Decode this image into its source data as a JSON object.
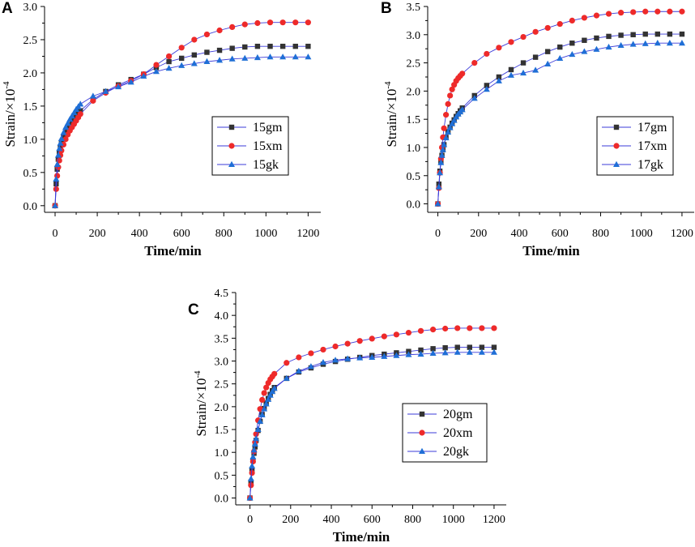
{
  "chart_data": [
    {
      "panel": "A",
      "type": "line",
      "xlabel": "Time/min",
      "ylabel_main": "Strain/×10",
      "ylabel_exp": "-4",
      "xlim": [
        -50,
        1260
      ],
      "ylim": [
        -0.1,
        3.0
      ],
      "xticks": [
        0,
        200,
        400,
        600,
        800,
        1000,
        1200
      ],
      "yticks": [
        0.0,
        0.5,
        1.0,
        1.5,
        2.0,
        2.5,
        3.0
      ],
      "legend_position": "center-right",
      "series": [
        {
          "name": "15gm",
          "color": "#333333",
          "marker": "square",
          "x": [
            0,
            5,
            10,
            15,
            20,
            25,
            30,
            40,
            50,
            60,
            70,
            80,
            90,
            100,
            110,
            120,
            180,
            240,
            300,
            360,
            420,
            480,
            540,
            600,
            660,
            720,
            780,
            840,
            900,
            960,
            1020,
            1080,
            1140,
            1200
          ],
          "y": [
            0,
            0.33,
            0.55,
            0.7,
            0.8,
            0.88,
            0.95,
            1.03,
            1.1,
            1.16,
            1.21,
            1.26,
            1.31,
            1.35,
            1.39,
            1.43,
            1.6,
            1.72,
            1.82,
            1.9,
            1.98,
            2.08,
            2.17,
            2.22,
            2.27,
            2.31,
            2.34,
            2.37,
            2.39,
            2.4,
            2.4,
            2.4,
            2.4,
            2.4
          ]
        },
        {
          "name": "15xm",
          "color": "#ee2a2a",
          "marker": "circle",
          "x": [
            0,
            5,
            10,
            15,
            20,
            25,
            30,
            40,
            50,
            60,
            70,
            80,
            90,
            100,
            110,
            120,
            180,
            240,
            300,
            360,
            420,
            480,
            540,
            600,
            660,
            720,
            780,
            840,
            900,
            960,
            1020,
            1080,
            1140,
            1200
          ],
          "y": [
            0,
            0.25,
            0.45,
            0.58,
            0.68,
            0.76,
            0.83,
            0.92,
            1.0,
            1.07,
            1.13,
            1.18,
            1.23,
            1.28,
            1.33,
            1.38,
            1.58,
            1.7,
            1.8,
            1.88,
            1.98,
            2.12,
            2.25,
            2.38,
            2.5,
            2.58,
            2.64,
            2.69,
            2.73,
            2.75,
            2.76,
            2.76,
            2.76,
            2.76
          ]
        },
        {
          "name": "15gk",
          "color": "#1f6fd6",
          "marker": "triangle",
          "x": [
            0,
            5,
            10,
            15,
            20,
            25,
            30,
            40,
            50,
            60,
            70,
            80,
            90,
            100,
            110,
            120,
            180,
            240,
            300,
            360,
            420,
            480,
            540,
            600,
            660,
            720,
            780,
            840,
            900,
            960,
            1020,
            1080,
            1140,
            1200
          ],
          "y": [
            0,
            0.4,
            0.62,
            0.76,
            0.86,
            0.94,
            1.01,
            1.1,
            1.18,
            1.24,
            1.3,
            1.35,
            1.4,
            1.45,
            1.49,
            1.53,
            1.65,
            1.72,
            1.79,
            1.86,
            1.95,
            2.02,
            2.07,
            2.11,
            2.14,
            2.17,
            2.19,
            2.21,
            2.22,
            2.23,
            2.24,
            2.24,
            2.24,
            2.24
          ]
        }
      ]
    },
    {
      "panel": "B",
      "type": "line",
      "xlabel": "Time/min",
      "ylabel_main": "Strain/×10",
      "ylabel_exp": "-4",
      "xlim": [
        -50,
        1260
      ],
      "ylim": [
        -0.15,
        3.5
      ],
      "xticks": [
        0,
        200,
        400,
        600,
        800,
        1000,
        1200
      ],
      "yticks": [
        0.0,
        0.5,
        1.0,
        1.5,
        2.0,
        2.5,
        3.0,
        3.5
      ],
      "legend_position": "center-right",
      "series": [
        {
          "name": "17gm",
          "color": "#333333",
          "marker": "square",
          "x": [
            0,
            5,
            10,
            15,
            20,
            25,
            30,
            40,
            50,
            60,
            70,
            80,
            90,
            100,
            110,
            120,
            180,
            240,
            300,
            360,
            420,
            480,
            540,
            600,
            660,
            720,
            780,
            840,
            900,
            960,
            1020,
            1080,
            1140,
            1200
          ],
          "y": [
            0,
            0.35,
            0.58,
            0.74,
            0.86,
            0.96,
            1.05,
            1.18,
            1.28,
            1.36,
            1.43,
            1.49,
            1.55,
            1.6,
            1.65,
            1.7,
            1.92,
            2.1,
            2.25,
            2.38,
            2.5,
            2.6,
            2.7,
            2.78,
            2.85,
            2.9,
            2.94,
            2.97,
            2.99,
            3.0,
            3.01,
            3.01,
            3.01,
            3.01
          ]
        },
        {
          "name": "17xm",
          "color": "#ee2a2a",
          "marker": "circle",
          "x": [
            0,
            5,
            10,
            15,
            20,
            25,
            30,
            40,
            50,
            60,
            70,
            80,
            90,
            100,
            110,
            120,
            180,
            240,
            300,
            360,
            420,
            480,
            540,
            600,
            660,
            720,
            780,
            840,
            900,
            960,
            1020,
            1080,
            1140,
            1200
          ],
          "y": [
            0,
            0.28,
            0.55,
            0.8,
            1.0,
            1.18,
            1.34,
            1.58,
            1.77,
            1.92,
            2.03,
            2.11,
            2.18,
            2.23,
            2.27,
            2.31,
            2.5,
            2.66,
            2.77,
            2.87,
            2.96,
            3.05,
            3.12,
            3.19,
            3.25,
            3.3,
            3.34,
            3.37,
            3.39,
            3.4,
            3.41,
            3.41,
            3.41,
            3.41
          ]
        },
        {
          "name": "17gk",
          "color": "#1f6fd6",
          "marker": "triangle",
          "x": [
            0,
            5,
            10,
            15,
            20,
            25,
            30,
            40,
            50,
            60,
            70,
            80,
            90,
            100,
            110,
            120,
            180,
            240,
            300,
            360,
            420,
            480,
            540,
            600,
            660,
            720,
            780,
            840,
            900,
            960,
            1020,
            1080,
            1140,
            1200
          ],
          "y": [
            0,
            0.3,
            0.55,
            0.73,
            0.86,
            0.96,
            1.05,
            1.17,
            1.27,
            1.35,
            1.42,
            1.48,
            1.54,
            1.59,
            1.63,
            1.67,
            1.87,
            2.03,
            2.18,
            2.28,
            2.32,
            2.37,
            2.48,
            2.58,
            2.65,
            2.7,
            2.74,
            2.78,
            2.81,
            2.83,
            2.84,
            2.85,
            2.85,
            2.85
          ]
        }
      ]
    },
    {
      "panel": "C",
      "type": "line",
      "xlabel": "Time/min",
      "ylabel_main": "Strain/×10",
      "ylabel_exp": "-4",
      "xlim": [
        -70,
        1260
      ],
      "ylim": [
        -0.15,
        4.5
      ],
      "xticks": [
        0,
        200,
        400,
        600,
        800,
        1000,
        1200
      ],
      "yticks": [
        0.0,
        0.5,
        1.0,
        1.5,
        2.0,
        2.5,
        3.0,
        3.5,
        4.0,
        4.5
      ],
      "legend_position": "center-right",
      "series": [
        {
          "name": "20gm",
          "color": "#333333",
          "marker": "square",
          "x": [
            0,
            5,
            10,
            15,
            20,
            25,
            30,
            40,
            50,
            60,
            70,
            80,
            90,
            100,
            110,
            120,
            180,
            240,
            300,
            360,
            420,
            480,
            540,
            600,
            660,
            720,
            780,
            840,
            900,
            960,
            1020,
            1080,
            1140,
            1200
          ],
          "y": [
            0,
            0.35,
            0.62,
            0.82,
            0.98,
            1.12,
            1.26,
            1.48,
            1.68,
            1.83,
            1.96,
            2.08,
            2.18,
            2.27,
            2.35,
            2.42,
            2.62,
            2.76,
            2.85,
            2.93,
            2.99,
            3.04,
            3.08,
            3.12,
            3.15,
            3.18,
            3.21,
            3.24,
            3.27,
            3.29,
            3.3,
            3.3,
            3.3,
            3.3
          ]
        },
        {
          "name": "20xm",
          "color": "#ee2a2a",
          "marker": "circle",
          "x": [
            0,
            5,
            10,
            15,
            20,
            25,
            30,
            40,
            50,
            60,
            70,
            80,
            90,
            100,
            110,
            120,
            180,
            240,
            300,
            360,
            420,
            480,
            540,
            600,
            660,
            720,
            780,
            840,
            900,
            960,
            1020,
            1080,
            1140,
            1200
          ],
          "y": [
            0,
            0.28,
            0.55,
            0.8,
            1.02,
            1.22,
            1.4,
            1.7,
            1.95,
            2.15,
            2.3,
            2.42,
            2.52,
            2.6,
            2.66,
            2.72,
            2.96,
            3.08,
            3.17,
            3.25,
            3.32,
            3.38,
            3.44,
            3.49,
            3.54,
            3.58,
            3.62,
            3.66,
            3.69,
            3.71,
            3.72,
            3.72,
            3.72,
            3.72
          ]
        },
        {
          "name": "20gk",
          "color": "#1f6fd6",
          "marker": "triangle",
          "x": [
            0,
            5,
            10,
            15,
            20,
            25,
            30,
            40,
            50,
            60,
            70,
            80,
            90,
            100,
            110,
            120,
            180,
            240,
            300,
            360,
            420,
            480,
            540,
            600,
            660,
            720,
            780,
            840,
            900,
            960,
            1020,
            1080,
            1140,
            1200
          ],
          "y": [
            0,
            0.42,
            0.7,
            0.9,
            1.05,
            1.18,
            1.3,
            1.5,
            1.68,
            1.82,
            1.95,
            2.06,
            2.16,
            2.25,
            2.33,
            2.4,
            2.62,
            2.78,
            2.88,
            2.97,
            3.02,
            3.05,
            3.07,
            3.08,
            3.1,
            3.12,
            3.14,
            3.15,
            3.17,
            3.18,
            3.19,
            3.19,
            3.19,
            3.19
          ]
        }
      ]
    }
  ]
}
